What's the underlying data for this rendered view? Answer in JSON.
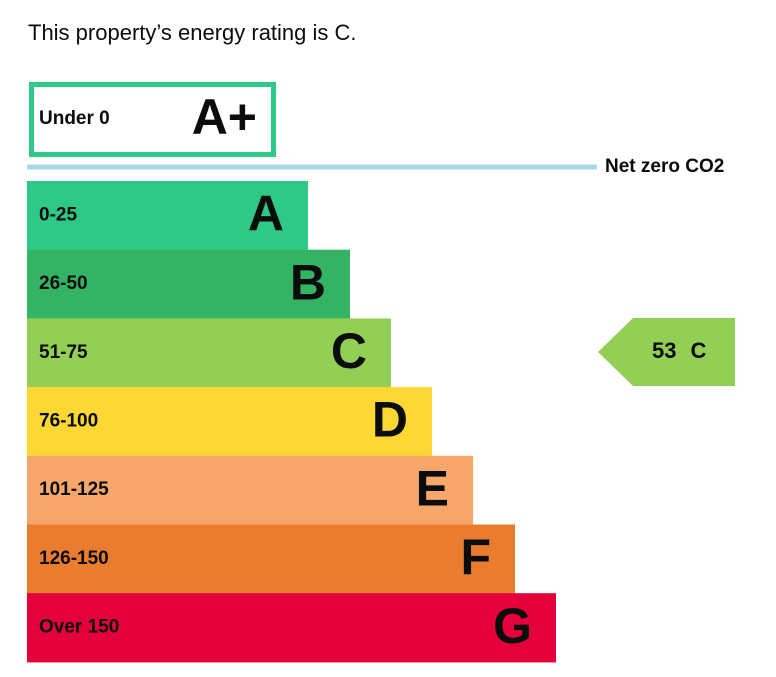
{
  "header": {
    "title": "This property’s energy rating is C."
  },
  "top_band": {
    "range": "Under 0",
    "letter": "A+"
  },
  "net_zero_label": "Net zero CO2",
  "bands": [
    {
      "range": "0-25",
      "letter": "A"
    },
    {
      "range": "26-50",
      "letter": "B"
    },
    {
      "range": "51-75",
      "letter": "C"
    },
    {
      "range": "76-100",
      "letter": "D"
    },
    {
      "range": "101-125",
      "letter": "E"
    },
    {
      "range": "126-150",
      "letter": "F"
    },
    {
      "range": "Over 150",
      "letter": "G"
    }
  ],
  "current": {
    "score": 53,
    "band": "C"
  }
}
